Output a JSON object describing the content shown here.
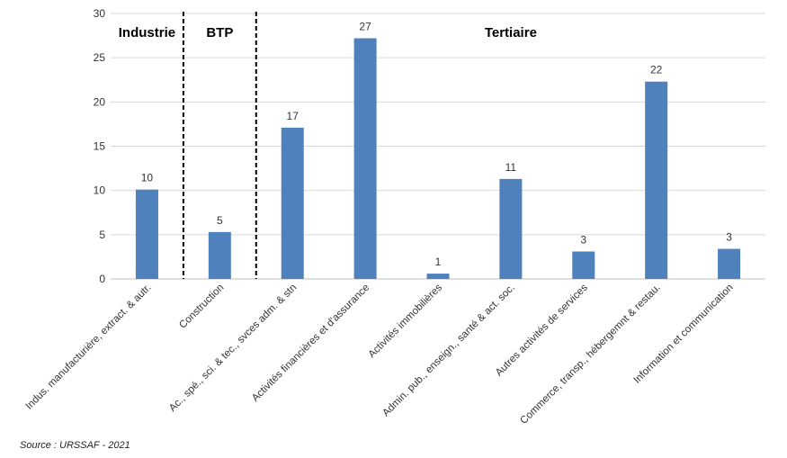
{
  "chart_data": {
    "type": "bar",
    "categories": [
      "Indus. manufacturière, extract. & autr.",
      "Construction",
      "Ac., spé., sci. & tec., svces adm. & stn",
      "Activités financières et d'assurance",
      "Activités immobilières",
      "Admin. pub., enseign., santé & act. soc.",
      "Autres activités de services",
      "Commerce, transp., hébergemnt & restau.",
      "Information et communication"
    ],
    "values": [
      10.1,
      5.3,
      17.1,
      27.2,
      0.6,
      11.3,
      3.1,
      22.3,
      3.4
    ],
    "data_labels": [
      "10",
      "5",
      "17",
      "27",
      "1",
      "11",
      "3",
      "22",
      "3"
    ],
    "ylim": [
      0,
      30
    ],
    "yticks": [
      "0",
      "5",
      "10",
      "15",
      "20",
      "25",
      "30"
    ],
    "grid": true,
    "bar_color": "#4f81bd",
    "groups": [
      {
        "label": "Industrie",
        "start": 0,
        "end": 0
      },
      {
        "label": "BTP",
        "start": 1,
        "end": 1
      },
      {
        "label": "Tertiaire",
        "start": 2,
        "end": 8
      }
    ],
    "source": "Source : URSSAF  - 2021"
  }
}
